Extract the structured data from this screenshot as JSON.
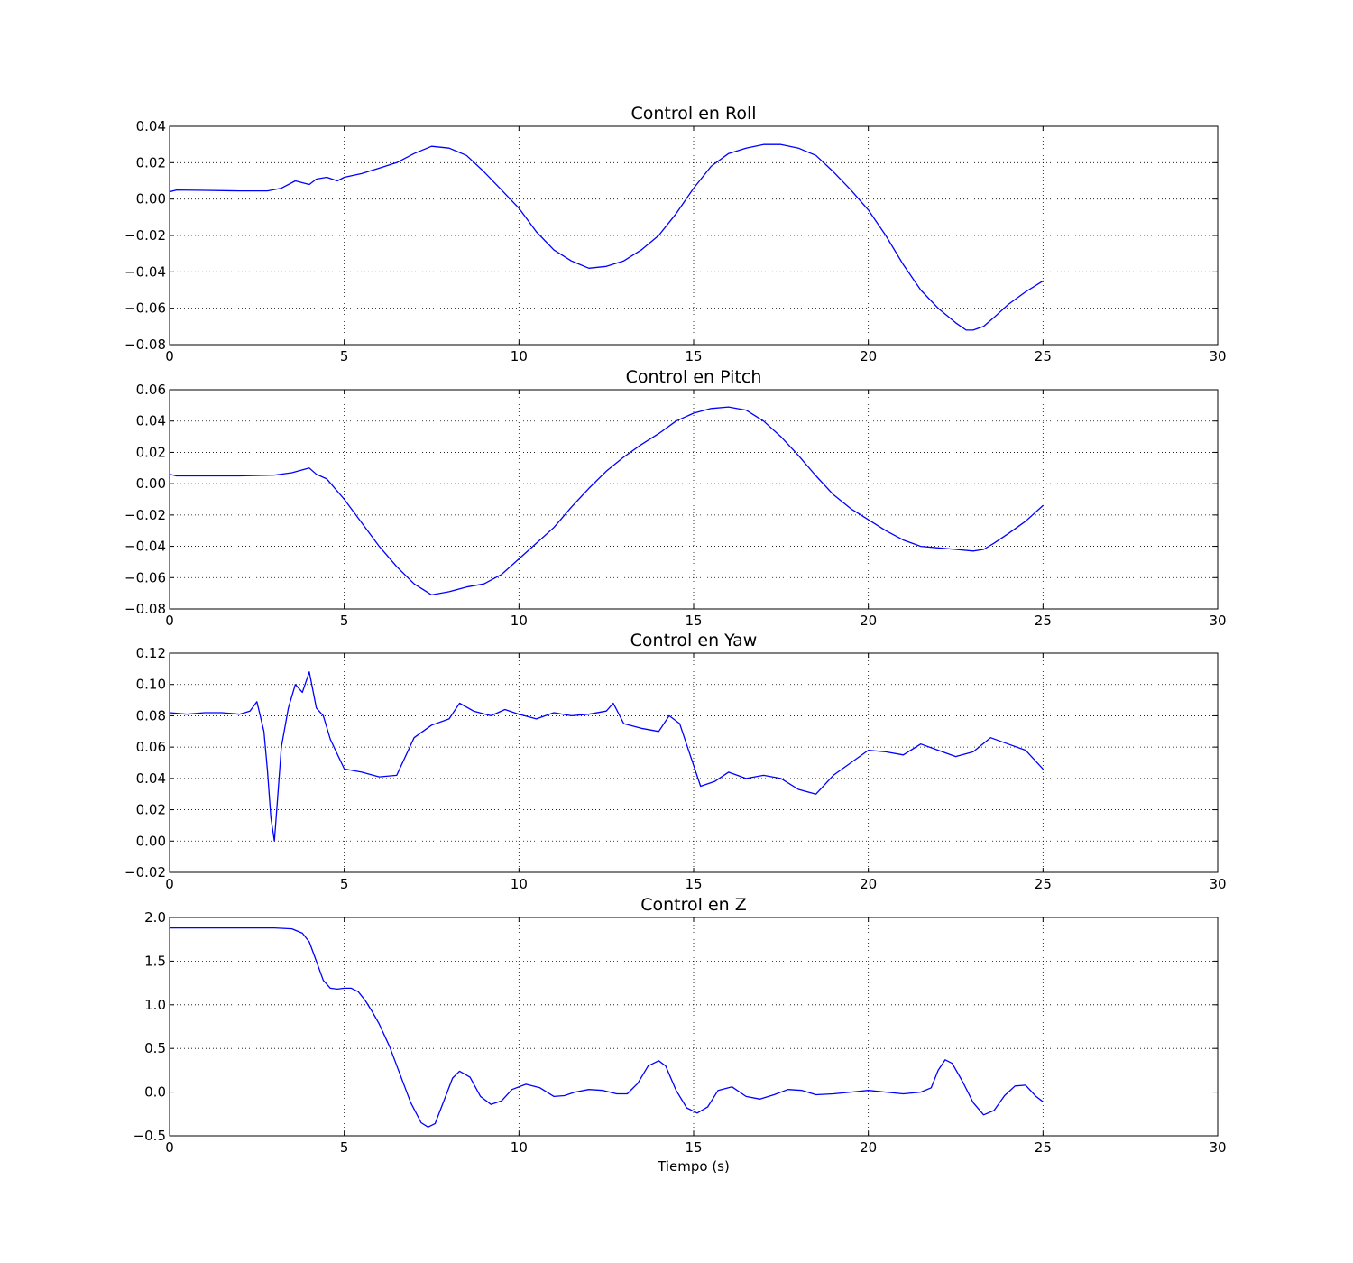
{
  "chart_data": [
    {
      "type": "line",
      "title": "Control en Roll",
      "xlabel": "",
      "ylabel": "",
      "xlim": [
        0,
        30
      ],
      "ylim": [
        -0.08,
        0.04
      ],
      "xticks": [
        0,
        5,
        10,
        15,
        20,
        25,
        30
      ],
      "yticks": [
        -0.08,
        -0.06,
        -0.04,
        -0.02,
        0.0,
        0.02,
        0.04
      ],
      "xtick_labels": [
        "0",
        "5",
        "10",
        "15",
        "20",
        "25",
        "30"
      ],
      "ytick_labels": [
        "−0.08",
        "−0.06",
        "−0.04",
        "−0.02",
        "0.00",
        "0.02",
        "0.04"
      ],
      "grid": true,
      "color": "#0000ff",
      "series": [
        {
          "x": [
            0,
            0.2,
            1,
            2,
            2.8,
            3.2,
            3.6,
            4.0,
            4.2,
            4.5,
            4.8,
            5.0,
            5.5,
            6.0,
            6.5,
            7.0,
            7.5,
            8.0,
            8.5,
            9.0,
            9.5,
            10.0,
            10.5,
            11.0,
            11.5,
            12.0,
            12.5,
            13.0,
            13.5,
            14.0,
            14.5,
            15.0,
            15.5,
            16.0,
            16.5,
            17.0,
            17.5,
            18.0,
            18.5,
            19.0,
            19.5,
            20.0,
            20.5,
            21.0,
            21.5,
            22.0,
            22.5,
            22.8,
            23.0,
            23.3,
            23.6,
            24.0,
            24.5,
            25.0
          ],
          "y": [
            0.004,
            0.005,
            0.0048,
            0.0045,
            0.0045,
            0.006,
            0.01,
            0.008,
            0.011,
            0.012,
            0.01,
            0.012,
            0.014,
            0.017,
            0.02,
            0.025,
            0.029,
            0.028,
            0.024,
            0.015,
            0.005,
            -0.005,
            -0.018,
            -0.028,
            -0.034,
            -0.038,
            -0.037,
            -0.034,
            -0.028,
            -0.02,
            -0.008,
            0.006,
            0.018,
            0.025,
            0.028,
            0.03,
            0.03,
            0.028,
            0.024,
            0.015,
            0.005,
            -0.006,
            -0.02,
            -0.036,
            -0.05,
            -0.06,
            -0.068,
            -0.072,
            -0.072,
            -0.07,
            -0.065,
            -0.058,
            -0.051,
            -0.045
          ]
        }
      ]
    },
    {
      "type": "line",
      "title": "Control en Pitch",
      "xlabel": "",
      "ylabel": "",
      "xlim": [
        0,
        30
      ],
      "ylim": [
        -0.08,
        0.06
      ],
      "xticks": [
        0,
        5,
        10,
        15,
        20,
        25,
        30
      ],
      "yticks": [
        -0.08,
        -0.06,
        -0.04,
        -0.02,
        0.0,
        0.02,
        0.04,
        0.06
      ],
      "xtick_labels": [
        "0",
        "5",
        "10",
        "15",
        "20",
        "25",
        "30"
      ],
      "ytick_labels": [
        "−0.08",
        "−0.06",
        "−0.04",
        "−0.02",
        "0.00",
        "0.02",
        "0.04",
        "0.06"
      ],
      "grid": true,
      "color": "#0000ff",
      "series": [
        {
          "x": [
            0,
            0.2,
            1,
            2,
            3,
            3.5,
            4.0,
            4.2,
            4.5,
            5.0,
            5.5,
            6.0,
            6.5,
            7.0,
            7.5,
            8.0,
            8.5,
            9.0,
            9.5,
            10.0,
            10.5,
            11.0,
            11.5,
            12.0,
            12.5,
            13.0,
            13.5,
            14.0,
            14.5,
            15.0,
            15.5,
            16.0,
            16.5,
            17.0,
            17.5,
            18.0,
            18.5,
            19.0,
            19.5,
            20.0,
            20.5,
            21.0,
            21.5,
            22.0,
            22.5,
            23.0,
            23.3,
            23.6,
            24.0,
            24.5,
            25.0
          ],
          "y": [
            0.006,
            0.005,
            0.005,
            0.005,
            0.0055,
            0.007,
            0.01,
            0.006,
            0.003,
            -0.01,
            -0.025,
            -0.04,
            -0.053,
            -0.064,
            -0.071,
            -0.069,
            -0.066,
            -0.064,
            -0.058,
            -0.048,
            -0.038,
            -0.028,
            -0.015,
            -0.003,
            0.008,
            0.017,
            0.025,
            0.032,
            0.04,
            0.045,
            0.048,
            0.049,
            0.047,
            0.04,
            0.03,
            0.018,
            0.005,
            -0.007,
            -0.016,
            -0.023,
            -0.03,
            -0.036,
            -0.04,
            -0.041,
            -0.042,
            -0.043,
            -0.042,
            -0.038,
            -0.032,
            -0.024,
            -0.014
          ]
        }
      ]
    },
    {
      "type": "line",
      "title": "Control en Yaw",
      "xlabel": "",
      "ylabel": "",
      "xlim": [
        0,
        30
      ],
      "ylim": [
        -0.02,
        0.12
      ],
      "xticks": [
        0,
        5,
        10,
        15,
        20,
        25,
        30
      ],
      "yticks": [
        -0.02,
        0.0,
        0.02,
        0.04,
        0.06,
        0.08,
        0.1,
        0.12
      ],
      "xtick_labels": [
        "0",
        "5",
        "10",
        "15",
        "20",
        "25",
        "30"
      ],
      "ytick_labels": [
        "−0.02",
        "0.00",
        "0.02",
        "0.04",
        "0.06",
        "0.08",
        "0.10",
        "0.12"
      ],
      "grid": true,
      "color": "#0000ff",
      "series": [
        {
          "x": [
            0,
            0.5,
            1,
            1.5,
            2,
            2.3,
            2.5,
            2.7,
            2.8,
            2.9,
            3.0,
            3.1,
            3.2,
            3.4,
            3.6,
            3.8,
            4.0,
            4.2,
            4.4,
            4.6,
            5.0,
            5.5,
            6.0,
            6.5,
            7.0,
            7.5,
            8.0,
            8.3,
            8.7,
            9.2,
            9.6,
            10.0,
            10.5,
            11.0,
            11.5,
            12.0,
            12.5,
            12.7,
            13.0,
            13.5,
            14.0,
            14.3,
            14.6,
            14.9,
            15.2,
            15.6,
            16.0,
            16.5,
            17.0,
            17.5,
            18.0,
            18.5,
            19.0,
            19.5,
            20.0,
            20.5,
            21.0,
            21.5,
            22.0,
            22.5,
            23.0,
            23.5,
            24.0,
            24.5,
            25.0
          ],
          "y": [
            0.082,
            0.081,
            0.082,
            0.082,
            0.081,
            0.083,
            0.089,
            0.07,
            0.045,
            0.015,
            0.0,
            0.03,
            0.06,
            0.085,
            0.1,
            0.095,
            0.108,
            0.085,
            0.08,
            0.065,
            0.046,
            0.044,
            0.041,
            0.042,
            0.066,
            0.074,
            0.078,
            0.088,
            0.083,
            0.08,
            0.084,
            0.081,
            0.078,
            0.082,
            0.08,
            0.081,
            0.083,
            0.088,
            0.075,
            0.072,
            0.07,
            0.08,
            0.075,
            0.055,
            0.035,
            0.038,
            0.044,
            0.04,
            0.042,
            0.04,
            0.033,
            0.03,
            0.042,
            0.05,
            0.058,
            0.057,
            0.055,
            0.062,
            0.058,
            0.054,
            0.057,
            0.066,
            0.062,
            0.058,
            0.046
          ]
        }
      ]
    },
    {
      "type": "line",
      "title": "Control en Z",
      "xlabel": "Tiempo (s)",
      "ylabel": "",
      "xlim": [
        0,
        30
      ],
      "ylim": [
        -0.5,
        2.0
      ],
      "xticks": [
        0,
        5,
        10,
        15,
        20,
        25,
        30
      ],
      "yticks": [
        -0.5,
        0.0,
        0.5,
        1.0,
        1.5,
        2.0
      ],
      "xtick_labels": [
        "0",
        "5",
        "10",
        "15",
        "20",
        "25",
        "30"
      ],
      "ytick_labels": [
        "−0.5",
        "0.0",
        "0.5",
        "1.0",
        "1.5",
        "2.0"
      ],
      "grid": true,
      "color": "#0000ff",
      "series": [
        {
          "x": [
            0,
            1,
            2,
            3,
            3.5,
            3.8,
            4.0,
            4.2,
            4.4,
            4.6,
            4.8,
            5.0,
            5.2,
            5.4,
            5.6,
            5.8,
            6.0,
            6.3,
            6.6,
            6.9,
            7.2,
            7.4,
            7.6,
            7.9,
            8.1,
            8.3,
            8.6,
            8.9,
            9.2,
            9.5,
            9.8,
            10.2,
            10.6,
            11.0,
            11.3,
            11.6,
            12.0,
            12.4,
            12.8,
            13.1,
            13.4,
            13.7,
            14.0,
            14.2,
            14.5,
            14.8,
            15.1,
            15.4,
            15.7,
            16.1,
            16.5,
            16.9,
            17.3,
            17.7,
            18.1,
            18.5,
            19.0,
            19.5,
            20.0,
            20.5,
            21.0,
            21.5,
            21.8,
            22.0,
            22.2,
            22.4,
            22.7,
            23.0,
            23.3,
            23.6,
            23.9,
            24.2,
            24.5,
            24.8,
            25.0
          ],
          "y": [
            1.88,
            1.88,
            1.88,
            1.88,
            1.87,
            1.82,
            1.72,
            1.5,
            1.28,
            1.19,
            1.18,
            1.19,
            1.19,
            1.15,
            1.05,
            0.92,
            0.78,
            0.52,
            0.2,
            -0.12,
            -0.35,
            -0.4,
            -0.36,
            -0.05,
            0.16,
            0.24,
            0.17,
            -0.05,
            -0.14,
            -0.1,
            0.03,
            0.09,
            0.05,
            -0.05,
            -0.04,
            0.0,
            0.03,
            0.02,
            -0.02,
            -0.02,
            0.1,
            0.3,
            0.36,
            0.3,
            0.02,
            -0.18,
            -0.24,
            -0.17,
            0.02,
            0.06,
            -0.05,
            -0.08,
            -0.03,
            0.03,
            0.02,
            -0.03,
            -0.02,
            0.0,
            0.02,
            0.0,
            -0.02,
            0.0,
            0.05,
            0.25,
            0.37,
            0.33,
            0.12,
            -0.12,
            -0.26,
            -0.21,
            -0.04,
            0.07,
            0.08,
            -0.05,
            -0.11
          ]
        }
      ]
    }
  ]
}
